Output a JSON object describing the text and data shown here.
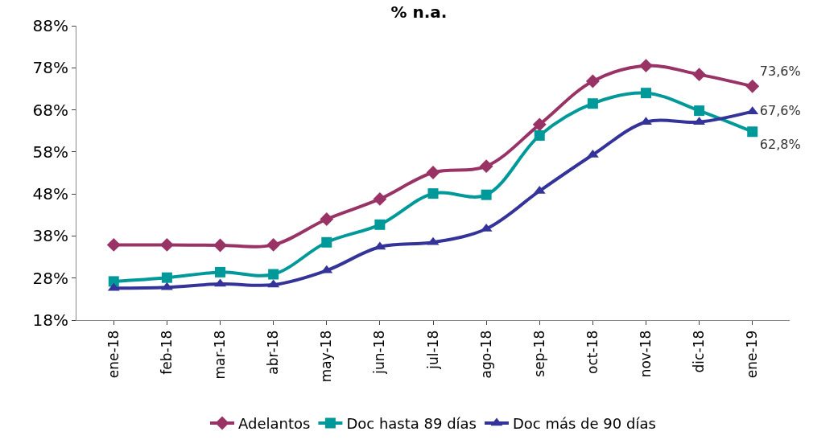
{
  "chart_data": {
    "type": "line",
    "title": "% n.a.",
    "categories": [
      "ene-18",
      "feb-18",
      "mar-18",
      "abr-18",
      "may-18",
      "jun-18",
      "jul-18",
      "ago-18",
      "sep-18",
      "oct-18",
      "nov-18",
      "dic-18",
      "ene-19"
    ],
    "series": [
      {
        "name": "Adelantos",
        "color": "#993366",
        "marker": "diamond",
        "values": [
          35.9,
          35.9,
          35.8,
          35.9,
          42.0,
          46.8,
          53.1,
          54.6,
          64.5,
          74.8,
          78.5,
          76.4,
          73.6
        ],
        "value_labels": [
          null,
          null,
          null,
          null,
          null,
          null,
          null,
          null,
          null,
          null,
          null,
          null,
          "73,6%"
        ]
      },
      {
        "name": "Doc hasta 89 días",
        "color": "#009999",
        "marker": "square",
        "values": [
          27.2,
          28.1,
          29.4,
          28.9,
          36.5,
          40.7,
          48.1,
          47.8,
          61.9,
          69.5,
          72.0,
          67.8,
          62.8
        ],
        "value_labels": [
          null,
          null,
          null,
          null,
          null,
          null,
          null,
          null,
          null,
          null,
          null,
          null,
          "62,8%"
        ]
      },
      {
        "name": "Doc más de 90 días",
        "color": "#333399",
        "marker": "triangle",
        "values": [
          25.6,
          25.8,
          26.6,
          26.4,
          29.8,
          35.4,
          36.5,
          39.7,
          48.7,
          57.3,
          65.1,
          65.1,
          67.6
        ],
        "value_labels": [
          null,
          null,
          null,
          null,
          null,
          null,
          null,
          null,
          null,
          null,
          null,
          null,
          "67,6%"
        ]
      }
    ],
    "ylim": [
      18,
      88
    ],
    "yticks": [
      {
        "value": 18,
        "label": "18%"
      },
      {
        "value": 28,
        "label": "28%"
      },
      {
        "value": 38,
        "label": "38%"
      },
      {
        "value": 48,
        "label": "48%"
      },
      {
        "value": 58,
        "label": "58%"
      },
      {
        "value": 68,
        "label": "68%"
      },
      {
        "value": 78,
        "label": "78%"
      },
      {
        "value": 88,
        "label": "88%"
      }
    ],
    "legend": "bottom",
    "line_style": "solid"
  }
}
